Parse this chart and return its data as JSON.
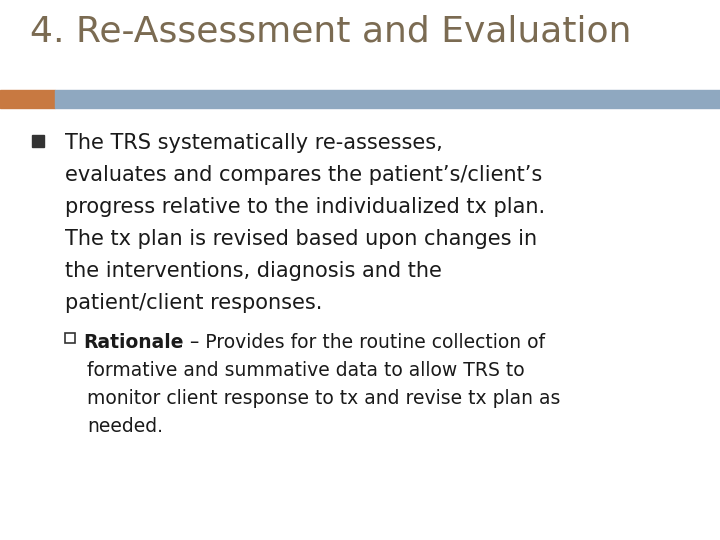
{
  "title": "4. Re-Assessment and Evaluation",
  "title_color": "#7B6B52",
  "title_fontsize": 26,
  "background_color": "#FFFFFF",
  "accent_bar_color_left": "#C87941",
  "accent_bar_color_right": "#8FA8C0",
  "text_color": "#1A1A1A",
  "bullet_color": "#333333",
  "body_fontsize": 15,
  "sub_fontsize": 13.5,
  "bullet_lines": [
    "The TRS systematically re-assesses,",
    "evaluates and compares the patient’s/client’s",
    "progress relative to the individualized tx plan.",
    "The tx plan is revised based upon changes in",
    "the interventions, diagnosis and the",
    "patient/client responses."
  ],
  "sub_bold": "Rationale",
  "sub_rest": " – Provides for the routine collection of",
  "sub_cont_lines": [
    "formative and summative data to allow TRS to",
    "monitor client response to tx and revise tx plan as",
    "needed."
  ]
}
